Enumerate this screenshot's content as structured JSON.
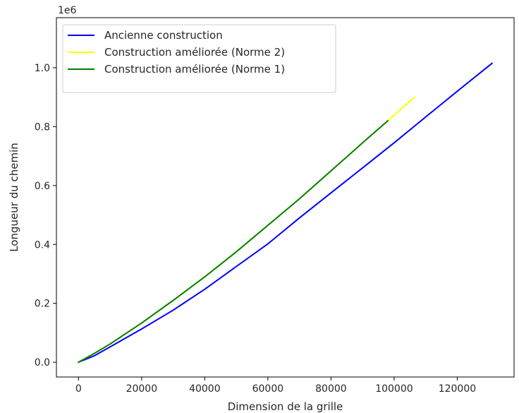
{
  "chart_data": {
    "type": "line",
    "xlabel": "Dimension de la grille",
    "ylabel": "Longueur du chemin",
    "y_scale_label": "1e6",
    "xlim": [
      -7000,
      138000
    ],
    "ylim": [
      -0.05,
      1.17
    ],
    "x_ticks": [
      0,
      20000,
      40000,
      60000,
      80000,
      100000,
      120000
    ],
    "x_tick_labels": [
      "0",
      "20000",
      "40000",
      "60000",
      "80000",
      "100000",
      "120000"
    ],
    "y_ticks": [
      0.0,
      0.2,
      0.4,
      0.6,
      0.8,
      1.0
    ],
    "y_tick_labels": [
      "0.0",
      "0.2",
      "0.4",
      "0.6",
      "0.8",
      "1.0"
    ],
    "grid": false,
    "legend_position": "upper-left",
    "series": [
      {
        "name": "Ancienne construction",
        "color": "#0000ff",
        "x": [
          0,
          5000,
          10000,
          20000,
          30000,
          40000,
          50000,
          60000,
          70000,
          80000,
          90000,
          100000,
          110000,
          120000,
          131000
        ],
        "y": [
          0.0,
          0.022,
          0.052,
          0.113,
          0.177,
          0.248,
          0.325,
          0.402,
          0.49,
          0.575,
          0.66,
          0.745,
          0.833,
          0.92,
          1.015
        ]
      },
      {
        "name": "Construction améliorée (Norme 2)",
        "color": "#ffff00",
        "x": [
          0,
          5000,
          10000,
          20000,
          30000,
          40000,
          50000,
          60000,
          70000,
          80000,
          90000,
          98000,
          106500
        ],
        "y": [
          0.0,
          0.03,
          0.062,
          0.133,
          0.21,
          0.29,
          0.375,
          0.465,
          0.555,
          0.65,
          0.745,
          0.82,
          0.9
        ]
      },
      {
        "name": "Construction améliorée (Norme 1)",
        "color": "#008000",
        "x": [
          0,
          5000,
          10000,
          20000,
          30000,
          40000,
          50000,
          60000,
          70000,
          80000,
          90000,
          98000
        ],
        "y": [
          0.0,
          0.03,
          0.062,
          0.133,
          0.21,
          0.29,
          0.375,
          0.465,
          0.555,
          0.65,
          0.745,
          0.82
        ]
      }
    ]
  }
}
